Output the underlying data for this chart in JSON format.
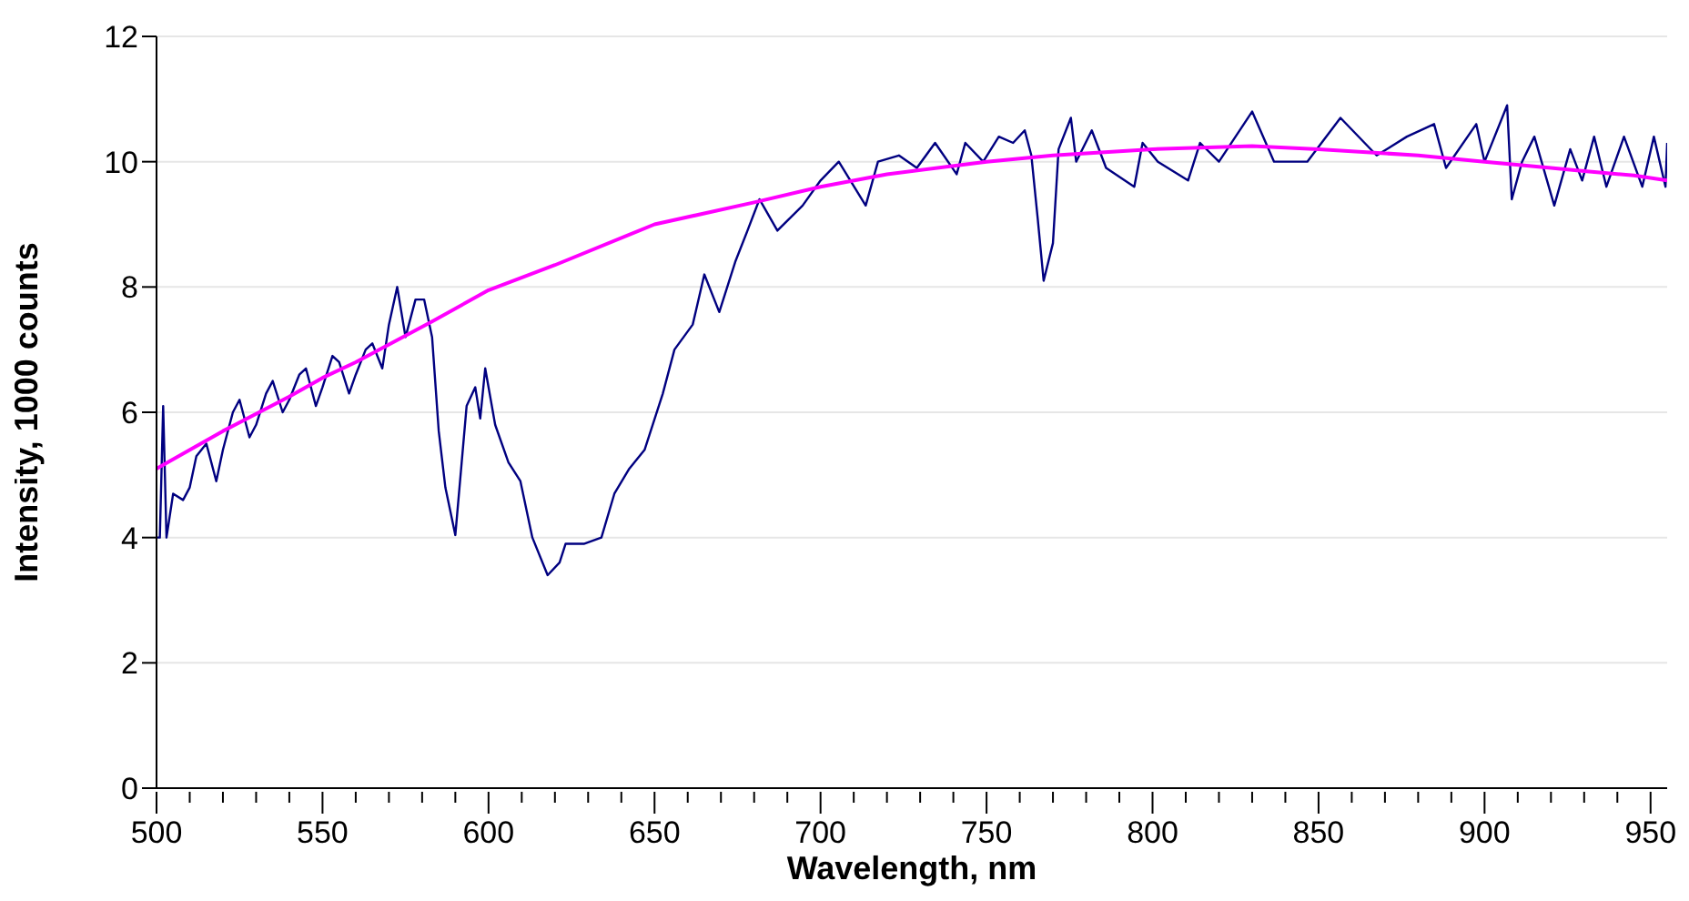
{
  "chart_data": {
    "type": "line",
    "xlabel": "Wavelength, nm",
    "ylabel": "Intensity, 1000 counts",
    "xlim": [
      500,
      955
    ],
    "xticks": [
      500,
      {
        "value": 510,
        "label": null
      },
      {
        "value": 520,
        "label": null
      },
      {
        "value": 530,
        "label": null
      },
      {
        "value": 540,
        "label": null
      },
      550,
      {
        "value": 560,
        "label": null
      },
      {
        "value": 570,
        "label": null
      },
      {
        "value": 580,
        "label": null
      },
      {
        "value": 590,
        "label": null
      },
      600,
      {
        "value": 610,
        "label": null
      },
      {
        "value": 620,
        "label": null
      },
      {
        "value": 630,
        "label": null
      },
      {
        "value": 640,
        "label": null
      },
      650,
      {
        "value": 660,
        "label": null
      },
      {
        "value": 670,
        "label": null
      },
      {
        "value": 680,
        "label": null
      },
      {
        "value": 690,
        "label": null
      },
      700,
      {
        "value": 710,
        "label": null
      },
      {
        "value": 720,
        "label": null
      },
      {
        "value": 730,
        "label": null
      },
      {
        "value": 740,
        "label": null
      },
      750,
      {
        "value": 760,
        "label": null
      },
      {
        "value": 770,
        "label": null
      },
      {
        "value": 780,
        "label": null
      },
      {
        "value": 790,
        "label": null
      },
      800,
      {
        "value": 810,
        "label": null
      },
      {
        "value": 820,
        "label": null
      },
      {
        "value": 830,
        "label": null
      },
      {
        "value": 840,
        "label": null
      },
      850,
      {
        "value": 860,
        "label": null
      },
      {
        "value": 870,
        "label": null
      },
      {
        "value": 880,
        "label": null
      },
      {
        "value": 890,
        "label": null
      },
      900,
      {
        "value": 910,
        "label": null
      },
      {
        "value": 920,
        "label": null
      },
      {
        "value": 930,
        "label": null
      },
      {
        "value": 940,
        "label": null
      },
      950
    ],
    "ylim": [
      0,
      12
    ],
    "yticks": [
      0,
      2,
      4,
      6,
      8,
      10,
      12
    ],
    "grid": "y",
    "marker": "none",
    "line_style": "solid",
    "series": [
      {
        "color": "#000080",
        "x": [
          500,
          501,
          502,
          503,
          505,
          508,
          510,
          512,
          515,
          518,
          520,
          523,
          525,
          528,
          530,
          533,
          535,
          538,
          540,
          543,
          545,
          548,
          550,
          553,
          555,
          558,
          560,
          563,
          565,
          568,
          570,
          572.5,
          575,
          578,
          580.6,
          583,
          585,
          587,
          590,
          593.4,
          596,
          597.5,
          599,
          602,
          606,
          609.6,
          613.2,
          617.8,
          621.4,
          623.2,
          628.7,
          634,
          637.9,
          642.4,
          647,
          652.5,
          656,
          661.5,
          665,
          669.5,
          674.3,
          678,
          681.6,
          687,
          694.6,
          700,
          705.5,
          713.6,
          717.3,
          723.6,
          729,
          734.5,
          741,
          743.6,
          749,
          753.7,
          758,
          761.5,
          763.5,
          765.4,
          767.2,
          770,
          771.7,
          775.4,
          777,
          781.7,
          786,
          794.5,
          797,
          801.6,
          810.7,
          814.3,
          820,
          825,
          830,
          836.6,
          846.6,
          856.6,
          867.5,
          876.6,
          884.8,
          888.4,
          897.5,
          900,
          906.8,
          908.2,
          911.3,
          915,
          921,
          925.8,
          929.4,
          933,
          936.7,
          942,
          947.5,
          951,
          954.5,
          955
        ],
        "values": [
          4.0,
          4.0,
          6.1,
          4.0,
          4.7,
          4.6,
          4.8,
          5.3,
          5.5,
          4.9,
          5.4,
          6.0,
          6.2,
          5.6,
          5.8,
          6.3,
          6.5,
          6.0,
          6.2,
          6.6,
          6.7,
          6.1,
          6.4,
          6.9,
          6.8,
          6.3,
          6.6,
          7.0,
          7.1,
          6.7,
          7.4,
          8.0,
          7.2,
          7.8,
          7.8,
          7.2,
          5.7,
          4.8,
          4.04,
          6.1,
          6.4,
          5.9,
          6.7,
          5.8,
          5.2,
          4.9,
          4.0,
          3.4,
          3.6,
          3.9,
          3.9,
          4.0,
          4.7,
          5.1,
          5.4,
          6.3,
          7.0,
          7.4,
          8.2,
          7.6,
          8.4,
          8.9,
          9.4,
          8.9,
          9.3,
          9.7,
          10.0,
          9.3,
          10.0,
          10.1,
          9.9,
          10.3,
          9.8,
          10.3,
          10.0,
          10.4,
          10.3,
          10.5,
          10.1,
          9.1,
          8.1,
          8.7,
          10.2,
          10.7,
          10.0,
          10.5,
          9.9,
          9.6,
          10.3,
          10.0,
          9.7,
          10.3,
          10.0,
          10.4,
          10.8,
          10.0,
          10.0,
          10.7,
          10.1,
          10.4,
          10.6,
          9.9,
          10.6,
          10.0,
          10.9,
          9.4,
          10.0,
          10.4,
          9.3,
          10.2,
          9.7,
          10.4,
          9.6,
          10.4,
          9.6,
          10.4,
          9.6,
          10.3
        ]
      },
      {
        "color": "#ff00ff",
        "x": [
          500,
          520,
          540,
          550,
          560,
          583,
          600,
          620,
          650,
          680,
          700,
          720,
          750,
          770,
          800,
          830,
          850,
          880,
          900,
          920,
          930,
          945,
          955
        ],
        "values": [
          5.1,
          5.7,
          6.25,
          6.55,
          6.8,
          7.45,
          7.95,
          8.35,
          9.0,
          9.35,
          9.6,
          9.8,
          10.0,
          10.1,
          10.2,
          10.25,
          10.2,
          10.1,
          10.0,
          9.9,
          9.85,
          9.78,
          9.7
        ]
      }
    ]
  }
}
